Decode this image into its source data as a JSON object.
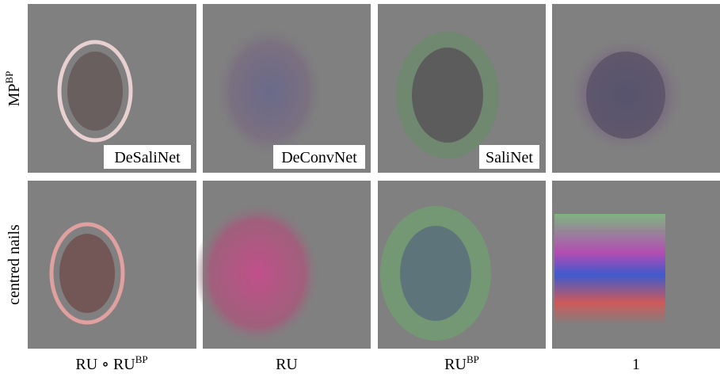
{
  "row_labels": [
    {
      "base": "MP",
      "sup": "BP"
    },
    {
      "base": "centred nails"
    }
  ],
  "panel_labels": [
    "DeSaliNet",
    "DeConvNet",
    "SaliNet"
  ],
  "column_labels": [
    {
      "base": "RU ∘ RU",
      "sup": "BP"
    },
    {
      "base": "RU"
    },
    {
      "base": "RU",
      "sup": "BP"
    },
    {
      "base": "1"
    }
  ]
}
